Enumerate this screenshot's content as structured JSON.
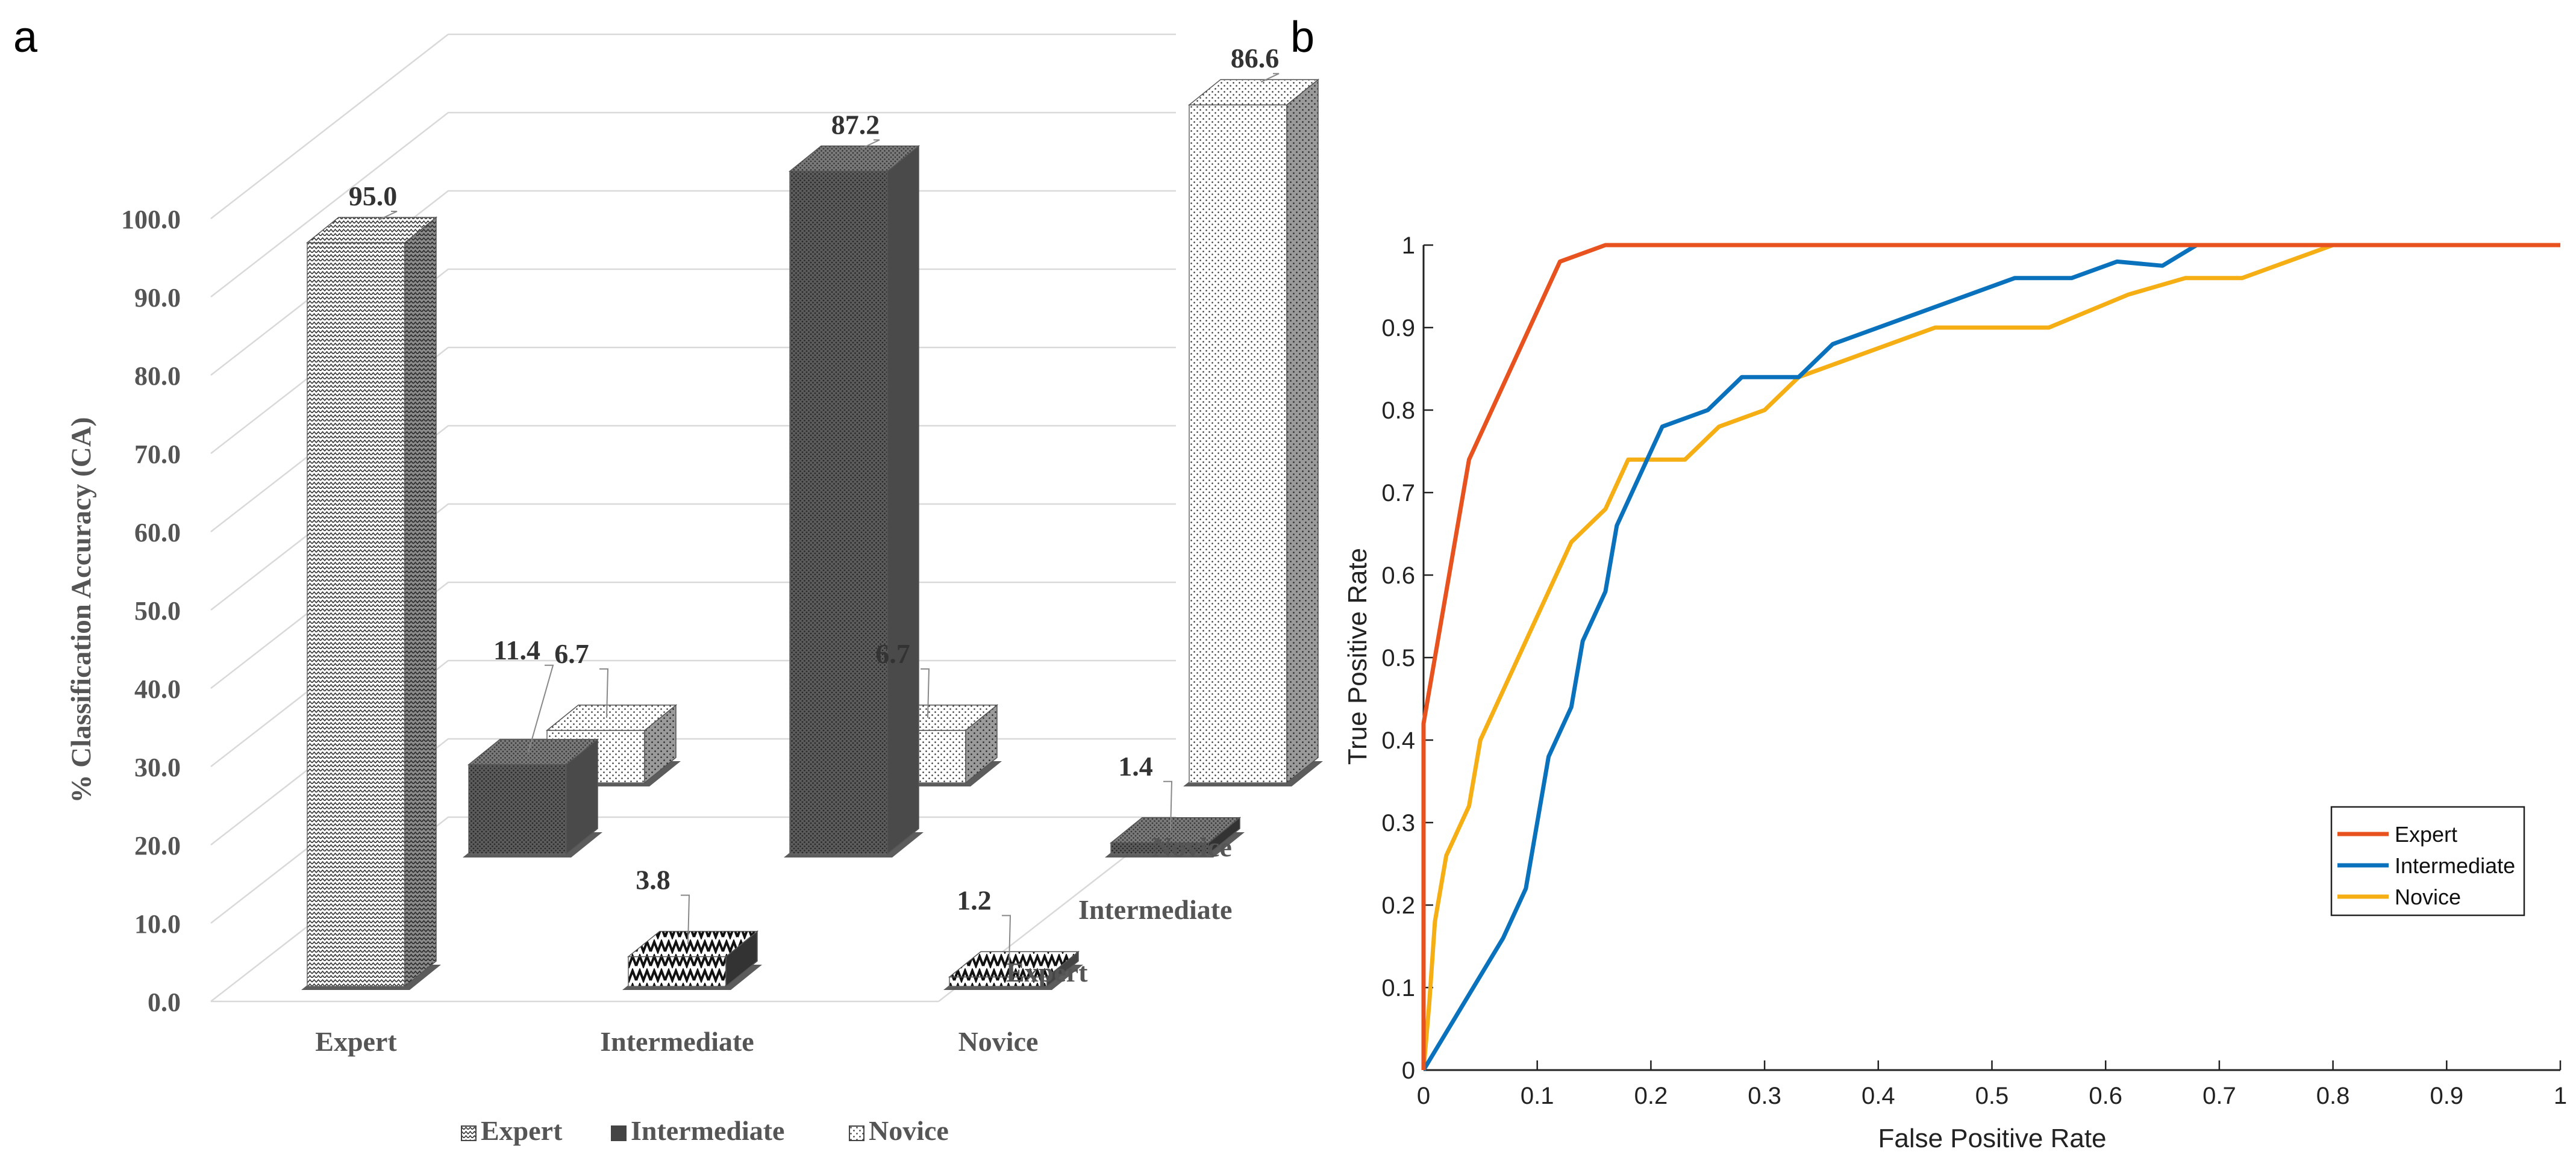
{
  "panel_a": {
    "label": "a"
  },
  "panel_b": {
    "label": "b"
  },
  "chart_data": [
    {
      "type": "bar",
      "variant": "3d-grouped",
      "title": "",
      "ylabel": "% Classification Accuracy (CA)",
      "xlabel": "",
      "ylim": [
        0,
        100
      ],
      "yticks": [
        "0.0",
        "10.0",
        "20.0",
        "30.0",
        "40.0",
        "50.0",
        "60.0",
        "70.0",
        "80.0",
        "90.0",
        "100.0"
      ],
      "categories": [
        "Expert",
        "Intermediate",
        "Novice"
      ],
      "depth_labels": [
        "Expert",
        "Intermediate",
        "Novice"
      ],
      "legend_position": "bottom",
      "series": [
        {
          "name": "Expert",
          "values": [
            95.0,
            3.8,
            1.2
          ],
          "labels": [
            "95.0",
            "3.8",
            "1.2"
          ]
        },
        {
          "name": "Intermediate",
          "values": [
            11.4,
            87.2,
            1.4
          ],
          "labels": [
            "11.4",
            "87.2",
            "1.4"
          ]
        },
        {
          "name": "Novice",
          "values": [
            6.7,
            6.7,
            86.6
          ],
          "labels": [
            "6.7",
            "6.7",
            "86.6"
          ]
        }
      ]
    },
    {
      "type": "line",
      "title": "",
      "xlabel": "False Positive Rate",
      "ylabel": "True Positive Rate",
      "xlim": [
        0,
        1
      ],
      "ylim": [
        0,
        1
      ],
      "xticks": [
        "0",
        "0.1",
        "0.2",
        "0.3",
        "0.4",
        "0.5",
        "0.6",
        "0.7",
        "0.8",
        "0.9",
        "1"
      ],
      "yticks": [
        "0",
        "0.1",
        "0.2",
        "0.3",
        "0.4",
        "0.5",
        "0.6",
        "0.7",
        "0.8",
        "0.9",
        "1"
      ],
      "legend_position": "lower-right",
      "series": [
        {
          "name": "Expert",
          "color": "#e8521e",
          "x": [
            0,
            0,
            0.04,
            0.12,
            0.16,
            0.3,
            0.5,
            0.8,
            1.0
          ],
          "y": [
            0,
            0.42,
            0.74,
            0.98,
            1.0,
            1.0,
            1.0,
            1.0,
            1.0
          ]
        },
        {
          "name": "Intermediate",
          "color": "#0a72bd",
          "x": [
            0,
            0.07,
            0.09,
            0.11,
            0.13,
            0.14,
            0.16,
            0.17,
            0.19,
            0.21,
            0.25,
            0.28,
            0.33,
            0.36,
            0.42,
            0.48,
            0.52,
            0.57,
            0.61,
            0.65,
            0.68,
            0.8,
            1.0
          ],
          "y": [
            0,
            0.16,
            0.22,
            0.38,
            0.44,
            0.52,
            0.58,
            0.66,
            0.72,
            0.78,
            0.8,
            0.84,
            0.84,
            0.88,
            0.91,
            0.94,
            0.96,
            0.96,
            0.98,
            0.975,
            1.0,
            1.0,
            1.0
          ]
        },
        {
          "name": "Novice",
          "color": "#f5ae13",
          "x": [
            0,
            0.005,
            0.01,
            0.02,
            0.04,
            0.05,
            0.13,
            0.16,
            0.18,
            0.23,
            0.26,
            0.3,
            0.33,
            0.45,
            0.55,
            0.62,
            0.67,
            0.72,
            0.8,
            1.0
          ],
          "y": [
            0,
            0.08,
            0.18,
            0.26,
            0.32,
            0.4,
            0.64,
            0.68,
            0.74,
            0.74,
            0.78,
            0.8,
            0.84,
            0.9,
            0.9,
            0.94,
            0.96,
            0.96,
            1.0,
            1.0
          ]
        }
      ]
    }
  ]
}
